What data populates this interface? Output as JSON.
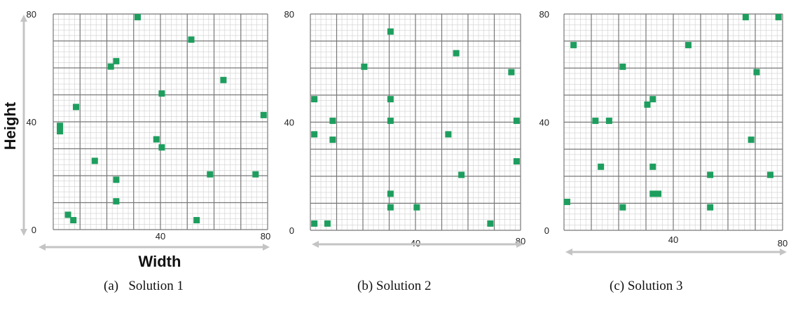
{
  "labels": {
    "height": "Height",
    "width": "Width"
  },
  "colors": {
    "square": "#1e9e5e",
    "grid_minor": "#cfcfcf",
    "grid_major": "#777777",
    "arrow": "#c4c4c4"
  },
  "captions": [
    "(a)   Solution 1",
    "(b) Solution 2",
    "(c) Solution 3"
  ],
  "chart_data": [
    {
      "type": "scatter",
      "title": "Solution 1",
      "xlabel": "Width",
      "ylabel": "Height",
      "xlim": [
        0,
        80
      ],
      "ylim": [
        0,
        80
      ],
      "x_ticks": [
        "40",
        "80"
      ],
      "y_ticks": [
        "0",
        "40",
        "80"
      ],
      "grid": "on",
      "points": [
        {
          "x": 31,
          "y": 80
        },
        {
          "x": 51,
          "y": 70
        },
        {
          "x": 21,
          "y": 60
        },
        {
          "x": 23,
          "y": 62
        },
        {
          "x": 63,
          "y": 55
        },
        {
          "x": 40,
          "y": 50
        },
        {
          "x": 8,
          "y": 45
        },
        {
          "x": 78,
          "y": 42
        },
        {
          "x": 2,
          "y": 38
        },
        {
          "x": 2,
          "y": 36
        },
        {
          "x": 38,
          "y": 33
        },
        {
          "x": 40,
          "y": 30
        },
        {
          "x": 15,
          "y": 25
        },
        {
          "x": 23,
          "y": 18
        },
        {
          "x": 58,
          "y": 20
        },
        {
          "x": 75,
          "y": 20
        },
        {
          "x": 23,
          "y": 10
        },
        {
          "x": 5,
          "y": 5
        },
        {
          "x": 7,
          "y": 3
        },
        {
          "x": 53,
          "y": 3
        }
      ]
    },
    {
      "type": "scatter",
      "title": "Solution 2",
      "xlabel": "",
      "ylabel": "",
      "xlim": [
        0,
        80
      ],
      "ylim": [
        0,
        80
      ],
      "x_ticks": [
        "40",
        "80"
      ],
      "y_ticks": [
        "0",
        "40",
        "80"
      ],
      "grid": "on",
      "points": [
        {
          "x": 30,
          "y": 73
        },
        {
          "x": 55,
          "y": 65
        },
        {
          "x": 20,
          "y": 60
        },
        {
          "x": 76,
          "y": 58
        },
        {
          "x": 1,
          "y": 48
        },
        {
          "x": 30,
          "y": 48
        },
        {
          "x": 8,
          "y": 40
        },
        {
          "x": 30,
          "y": 40
        },
        {
          "x": 78,
          "y": 40
        },
        {
          "x": 1,
          "y": 35
        },
        {
          "x": 52,
          "y": 35
        },
        {
          "x": 8,
          "y": 33
        },
        {
          "x": 78,
          "y": 25
        },
        {
          "x": 57,
          "y": 20
        },
        {
          "x": 30,
          "y": 13
        },
        {
          "x": 30,
          "y": 8
        },
        {
          "x": 40,
          "y": 8
        },
        {
          "x": 1,
          "y": 2
        },
        {
          "x": 6,
          "y": 2
        },
        {
          "x": 68,
          "y": 2
        }
      ]
    },
    {
      "type": "scatter",
      "title": "Solution 3",
      "xlabel": "",
      "ylabel": "",
      "xlim": [
        0,
        80
      ],
      "ylim": [
        0,
        80
      ],
      "x_ticks": [
        "40",
        "80"
      ],
      "y_ticks": [
        "0",
        "40",
        "80"
      ],
      "grid": "on",
      "points": [
        {
          "x": 66,
          "y": 80
        },
        {
          "x": 78,
          "y": 80
        },
        {
          "x": 3,
          "y": 68
        },
        {
          "x": 45,
          "y": 68
        },
        {
          "x": 21,
          "y": 60
        },
        {
          "x": 70,
          "y": 58
        },
        {
          "x": 32,
          "y": 48
        },
        {
          "x": 30,
          "y": 46
        },
        {
          "x": 11,
          "y": 40
        },
        {
          "x": 16,
          "y": 40
        },
        {
          "x": 68,
          "y": 33
        },
        {
          "x": 13,
          "y": 23
        },
        {
          "x": 32,
          "y": 23
        },
        {
          "x": 53,
          "y": 20
        },
        {
          "x": 75,
          "y": 20
        },
        {
          "x": 32,
          "y": 13
        },
        {
          "x": 34,
          "y": 13
        },
        {
          "x": 0,
          "y": 10
        },
        {
          "x": 21,
          "y": 8
        },
        {
          "x": 53,
          "y": 8
        }
      ]
    }
  ]
}
